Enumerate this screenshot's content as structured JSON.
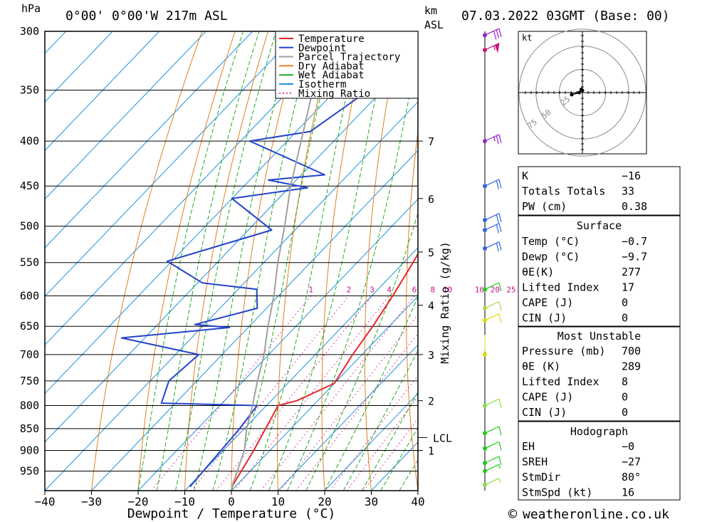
{
  "header": {
    "units_pressure": "hPa",
    "location": "0°00' 0°00'W 217m ASL",
    "units_height": "km",
    "units_height2": "ASL",
    "datetime": "07.03.2022 03GMT (Base: 00)"
  },
  "footer": {
    "copyright_symbol": "©",
    "site": "weatheronline.co.uk"
  },
  "chart_data": {
    "type": "line",
    "title": "",
    "xlabel": "Dewpoint / Temperature (°C)",
    "ylabel": "hPa",
    "xlim": [
      -40,
      40
    ],
    "ylim": [
      1000,
      300
    ],
    "x_ticks": [
      -40,
      -30,
      -20,
      -10,
      0,
      10,
      20,
      30,
      40
    ],
    "x_tick_labels": [
      "−40",
      "−30",
      "−20",
      "−10",
      "0",
      "10",
      "20",
      "30",
      "40"
    ],
    "pressure_ticks": [
      300,
      350,
      400,
      450,
      500,
      550,
      600,
      650,
      700,
      750,
      800,
      850,
      900,
      950
    ],
    "height_axis": {
      "label": "km ASL",
      "ticks": [
        {
          "p": 900,
          "label": "1"
        },
        {
          "p": 790,
          "label": "2"
        },
        {
          "p": 700,
          "label": "3"
        },
        {
          "p": 615,
          "label": "4"
        },
        {
          "p": 535,
          "label": "5"
        },
        {
          "p": 465,
          "label": "6"
        },
        {
          "p": 400,
          "label": "7"
        }
      ],
      "lcl": {
        "p": 870,
        "label": "LCL"
      }
    },
    "mixing_ratio_axis_label": "Mixing Ratio (g/kg)",
    "mixing_ratio_labels": [
      "1",
      "2",
      "3",
      "4",
      "6",
      "8",
      "10",
      "16",
      "20",
      "25"
    ],
    "legend": {
      "placement": "top",
      "entries": [
        {
          "name": "Temperature",
          "color": "#e8262b",
          "style": "solid"
        },
        {
          "name": "Dewpoint",
          "color": "#2244cc",
          "style": "solid"
        },
        {
          "name": "Parcel Trajectory",
          "color": "#a0a0a0",
          "style": "solid"
        },
        {
          "name": "Dry Adiabat",
          "color": "#e08020",
          "style": "solid"
        },
        {
          "name": "Wet Adiabat",
          "color": "#22aa22",
          "style": "solid"
        },
        {
          "name": "Isotherm",
          "color": "#1e90dd",
          "style": "solid"
        },
        {
          "name": "Mixing Ratio",
          "color": "#cc1188",
          "style": "dotted"
        }
      ]
    },
    "series": [
      {
        "name": "Temperature",
        "color": "#e8262b",
        "points": [
          [
            -0.7,
            990
          ],
          [
            -3.5,
            900
          ],
          [
            -7.5,
            800
          ],
          [
            -4.5,
            790
          ],
          [
            0,
            755
          ],
          [
            -2,
            700
          ],
          [
            -3.5,
            650
          ],
          [
            -5.5,
            600
          ],
          [
            -8,
            550
          ],
          [
            -11,
            500
          ],
          [
            -13,
            450
          ],
          [
            -16,
            400
          ],
          [
            -20,
            350
          ],
          [
            -24,
            300
          ]
        ]
      },
      {
        "name": "Dewpoint",
        "color": "#2244cc",
        "points": [
          [
            -9.7,
            990
          ],
          [
            -10.5,
            900
          ],
          [
            -11,
            850
          ],
          [
            -12,
            800
          ],
          [
            -33,
            795
          ],
          [
            -36,
            750
          ],
          [
            -35,
            700
          ],
          [
            -55,
            670
          ],
          [
            -34,
            652
          ],
          [
            -42,
            647
          ],
          [
            -32,
            620
          ],
          [
            -36,
            590
          ],
          [
            -49,
            580
          ],
          [
            -61,
            548
          ],
          [
            -45,
            505
          ],
          [
            -60,
            465
          ],
          [
            -46,
            452
          ],
          [
            -56,
            443
          ],
          [
            -45,
            437
          ],
          [
            -68,
            400
          ],
          [
            -57,
            390
          ],
          [
            -53,
            350
          ],
          [
            -52,
            300
          ]
        ]
      },
      {
        "name": "Parcel Trajectory",
        "color": "#a0a0a0",
        "points": [
          [
            -0.7,
            990
          ],
          [
            -5.5,
            900
          ],
          [
            -9.5,
            850
          ],
          [
            -13,
            800
          ],
          [
            -17,
            750
          ],
          [
            -21,
            700
          ],
          [
            -26,
            650
          ],
          [
            -31,
            600
          ],
          [
            -37,
            550
          ],
          [
            -43,
            500
          ],
          [
            -50,
            450
          ],
          [
            -57,
            400
          ],
          [
            -65,
            350
          ],
          [
            -74,
            300
          ]
        ]
      }
    ],
    "wind_barbs": [
      {
        "p": 985,
        "kt": 5,
        "color": "#88dd44"
      },
      {
        "p": 950,
        "kt": 5,
        "color": "#22cc22"
      },
      {
        "p": 930,
        "kt": 10,
        "color": "#22cc22"
      },
      {
        "p": 895,
        "kt": 10,
        "color": "#22cc22"
      },
      {
        "p": 860,
        "kt": 10,
        "color": "#22cc22"
      },
      {
        "p": 800,
        "kt": 10,
        "color": "#88dd44"
      },
      {
        "p": 700,
        "kt": 0,
        "color": "#dddd00"
      },
      {
        "p": 640,
        "kt": 10,
        "color": "#dddd00"
      },
      {
        "p": 620,
        "kt": 10,
        "color": "#aadd44"
      },
      {
        "p": 590,
        "kt": 10,
        "color": "#22cc22"
      },
      {
        "p": 530,
        "kt": 20,
        "color": "#3366dd"
      },
      {
        "p": 505,
        "kt": 20,
        "color": "#3366dd"
      },
      {
        "p": 492,
        "kt": 20,
        "color": "#3366dd"
      },
      {
        "p": 450,
        "kt": 20,
        "color": "#3366dd"
      },
      {
        "p": 400,
        "kt": 25,
        "color": "#9922cc"
      },
      {
        "p": 315,
        "kt": 55,
        "color": "#cc1177"
      },
      {
        "p": 303,
        "kt": 30,
        "color": "#9922cc"
      }
    ],
    "hodograph": {
      "unit_label": "kt",
      "rings": [
        25,
        50,
        75
      ],
      "ring_labels": [
        "25",
        "50",
        "75"
      ],
      "points": [
        [
          -10,
          2
        ],
        [
          -3,
          0
        ],
        [
          -1,
          -3
        ],
        [
          0,
          -2
        ]
      ]
    }
  },
  "indices": {
    "general": [
      {
        "label": "K",
        "value": "−16"
      },
      {
        "label": "Totals Totals",
        "value": "33"
      },
      {
        "label": "PW (cm)",
        "value": "0.38"
      }
    ],
    "surface_title": "Surface",
    "surface": [
      {
        "label": "Temp (°C)",
        "value": "−0.7"
      },
      {
        "label": "Dewp (°C)",
        "value": "−9.7"
      },
      {
        "label": "θE(K)",
        "value": "277"
      },
      {
        "label": "Lifted Index",
        "value": "17"
      },
      {
        "label": "CAPE (J)",
        "value": "0"
      },
      {
        "label": "CIN (J)",
        "value": "0"
      }
    ],
    "mu_title": "Most Unstable",
    "most_unstable": [
      {
        "label": "Pressure (mb)",
        "value": "700"
      },
      {
        "label": "θE (K)",
        "value": "289"
      },
      {
        "label": "Lifted Index",
        "value": "8"
      },
      {
        "label": "CAPE (J)",
        "value": "0"
      },
      {
        "label": "CIN (J)",
        "value": "0"
      }
    ],
    "hodo_title": "Hodograph",
    "hodograph": [
      {
        "label": "EH",
        "value": "−0"
      },
      {
        "label": "SREH",
        "value": "−27"
      },
      {
        "label": "StmDir",
        "value": "80°"
      },
      {
        "label": "StmSpd (kt)",
        "value": "16"
      }
    ]
  }
}
